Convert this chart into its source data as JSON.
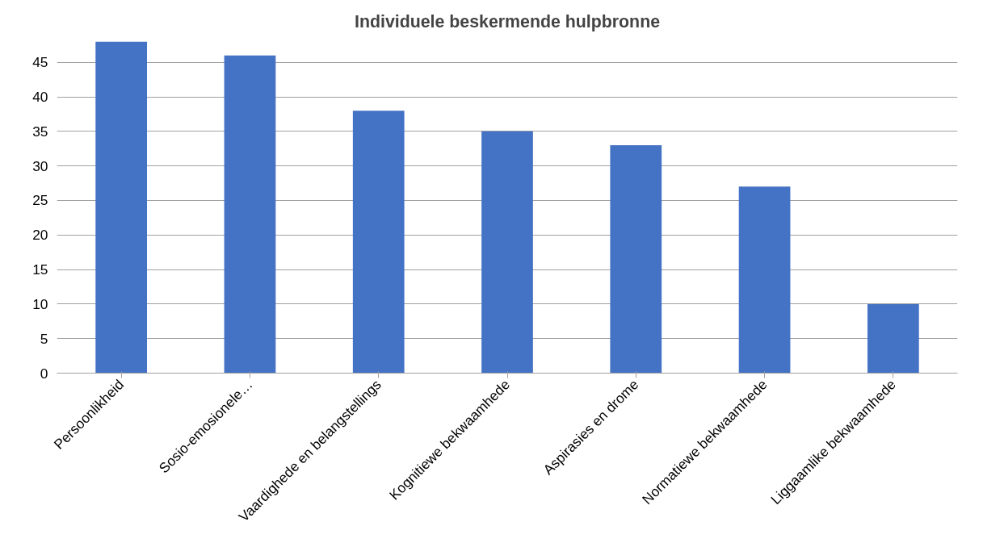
{
  "chart_data": {
    "type": "bar",
    "title": "Individuele beskermende hulpbronne",
    "categories": [
      "Persoonlikheid",
      "Sosio-emosionele…",
      "Vaardighede en belangstellings",
      "Kognitiewe bekwaamhede",
      "Aspirasies en drome",
      "Normatiewe bekwaamhede",
      "Liggaamlike bekwaamhede"
    ],
    "values": [
      48,
      46,
      38,
      35,
      33,
      27,
      10
    ],
    "color": "#4472c4",
    "ylim": [
      0,
      48
    ],
    "yticks": [
      0,
      5,
      10,
      15,
      20,
      25,
      30,
      35,
      40,
      45
    ],
    "grid": "y"
  }
}
